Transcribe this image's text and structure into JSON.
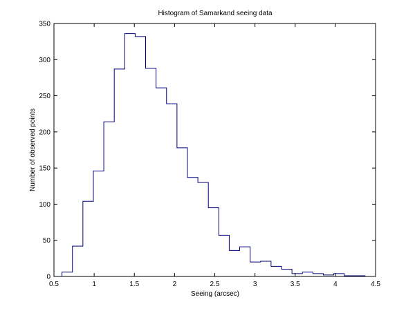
{
  "chart_data": {
    "type": "histogram",
    "title": "Histogram of Samarkand seeing data",
    "xlabel": "Seeing (arcsec)",
    "ylabel": "Number of observed points",
    "xlim": [
      0.5,
      4.5
    ],
    "ylim": [
      0,
      350
    ],
    "xticks": [
      "0.5",
      "1",
      "1.5",
      "2",
      "2.5",
      "3",
      "3.5",
      "4",
      "4.5"
    ],
    "yticks": [
      "0",
      "50",
      "100",
      "150",
      "200",
      "250",
      "300",
      "350"
    ],
    "grid": false,
    "line_color": "#00007f",
    "bin_edges": [
      0.6,
      0.73,
      0.86,
      0.99,
      1.12,
      1.25,
      1.38,
      1.51,
      1.64,
      1.77,
      1.9,
      2.03,
      2.16,
      2.29,
      2.42,
      2.55,
      2.68,
      2.81,
      2.94,
      3.07,
      3.2,
      3.33,
      3.46,
      3.59,
      3.72,
      3.85,
      3.98,
      4.11,
      4.24,
      4.37
    ],
    "counts": [
      6,
      42,
      104,
      146,
      214,
      287,
      336,
      332,
      288,
      261,
      239,
      178,
      137,
      130,
      95,
      57,
      36,
      41,
      20,
      21,
      14,
      10,
      4,
      6,
      4,
      2,
      4,
      1,
      1
    ]
  }
}
